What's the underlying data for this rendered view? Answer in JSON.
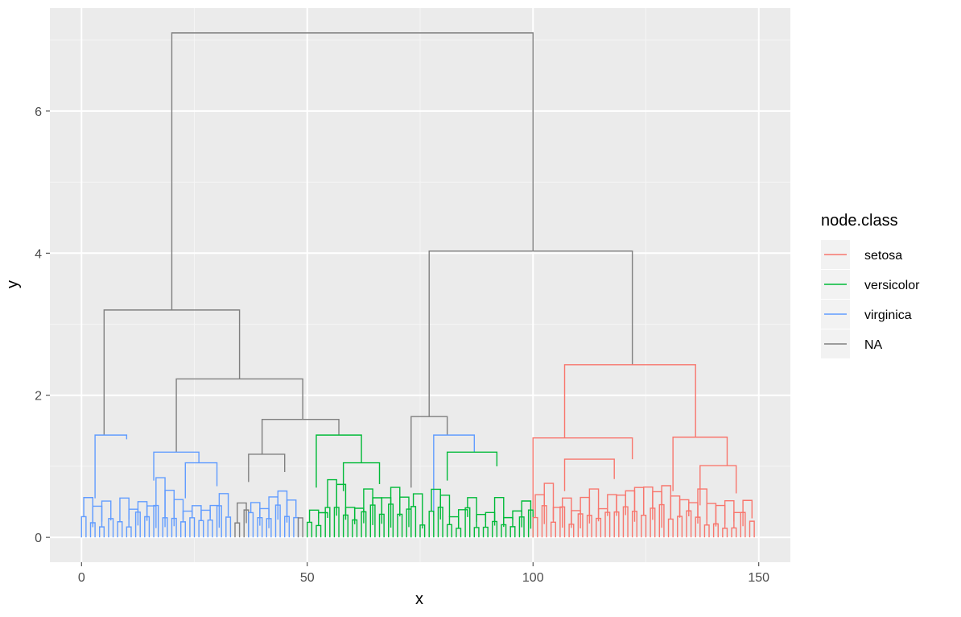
{
  "chart_data": {
    "type": "dendrogram",
    "xlabel": "x",
    "ylabel": "y",
    "xlim": [
      -7,
      157
    ],
    "ylim": [
      -0.35,
      7.45
    ],
    "x_ticks": [
      0,
      50,
      100,
      150
    ],
    "x_tick_labels": [
      "0",
      "50",
      "100",
      "150"
    ],
    "y_ticks": [
      0,
      2,
      4,
      6
    ],
    "y_tick_labels": [
      "0",
      "2",
      "4",
      "6"
    ],
    "grid": true,
    "legend": {
      "title": "node.class",
      "position": "right",
      "entries": [
        {
          "label": "setosa",
          "color": "#F8766D"
        },
        {
          "label": "versicolor",
          "color": "#00BA38"
        },
        {
          "label": "virginica",
          "color": "#619CFF"
        },
        {
          "label": "NA",
          "color": "#7F7F7F"
        }
      ]
    },
    "major_merges": [
      {
        "x1": 20,
        "x2": 100,
        "height": 7.1,
        "class": "NA"
      },
      {
        "x1": 77,
        "x2": 122,
        "height": 4.03,
        "class": "NA"
      },
      {
        "x1": 5,
        "x2": 35,
        "height": 3.2,
        "class": "NA"
      },
      {
        "x1": 107,
        "x2": 136,
        "height": 2.43,
        "class": "setosa"
      },
      {
        "x1": 21,
        "x2": 49,
        "height": 2.23,
        "class": "NA"
      },
      {
        "x1": 40,
        "x2": 57,
        "height": 1.66,
        "class": "NA"
      },
      {
        "x1": 73,
        "x2": 81,
        "height": 1.7,
        "class": "NA"
      },
      {
        "x1": 3,
        "x2": 10,
        "height": 1.44,
        "class": "virginica"
      },
      {
        "x1": 100,
        "x2": 122,
        "height": 1.4,
        "class": "setosa"
      },
      {
        "x1": 131,
        "x2": 143,
        "height": 1.41,
        "class": "setosa"
      },
      {
        "x1": 78,
        "x2": 87,
        "height": 1.44,
        "class": "virginica"
      },
      {
        "x1": 52,
        "x2": 62,
        "height": 1.44,
        "class": "versicolor"
      },
      {
        "x1": 16,
        "x2": 26,
        "height": 1.2,
        "class": "virginica"
      },
      {
        "x1": 81,
        "x2": 92,
        "height": 1.2,
        "class": "versicolor"
      },
      {
        "x1": 37,
        "x2": 45,
        "height": 1.17,
        "class": "NA"
      },
      {
        "x1": 107,
        "x2": 118,
        "height": 1.1,
        "class": "setosa"
      },
      {
        "x1": 58,
        "x2": 66,
        "height": 1.05,
        "class": "versicolor"
      },
      {
        "x1": 23,
        "x2": 30,
        "height": 1.05,
        "class": "virginica"
      },
      {
        "x1": 137,
        "x2": 145,
        "height": 1.01,
        "class": "setosa"
      }
    ]
  }
}
